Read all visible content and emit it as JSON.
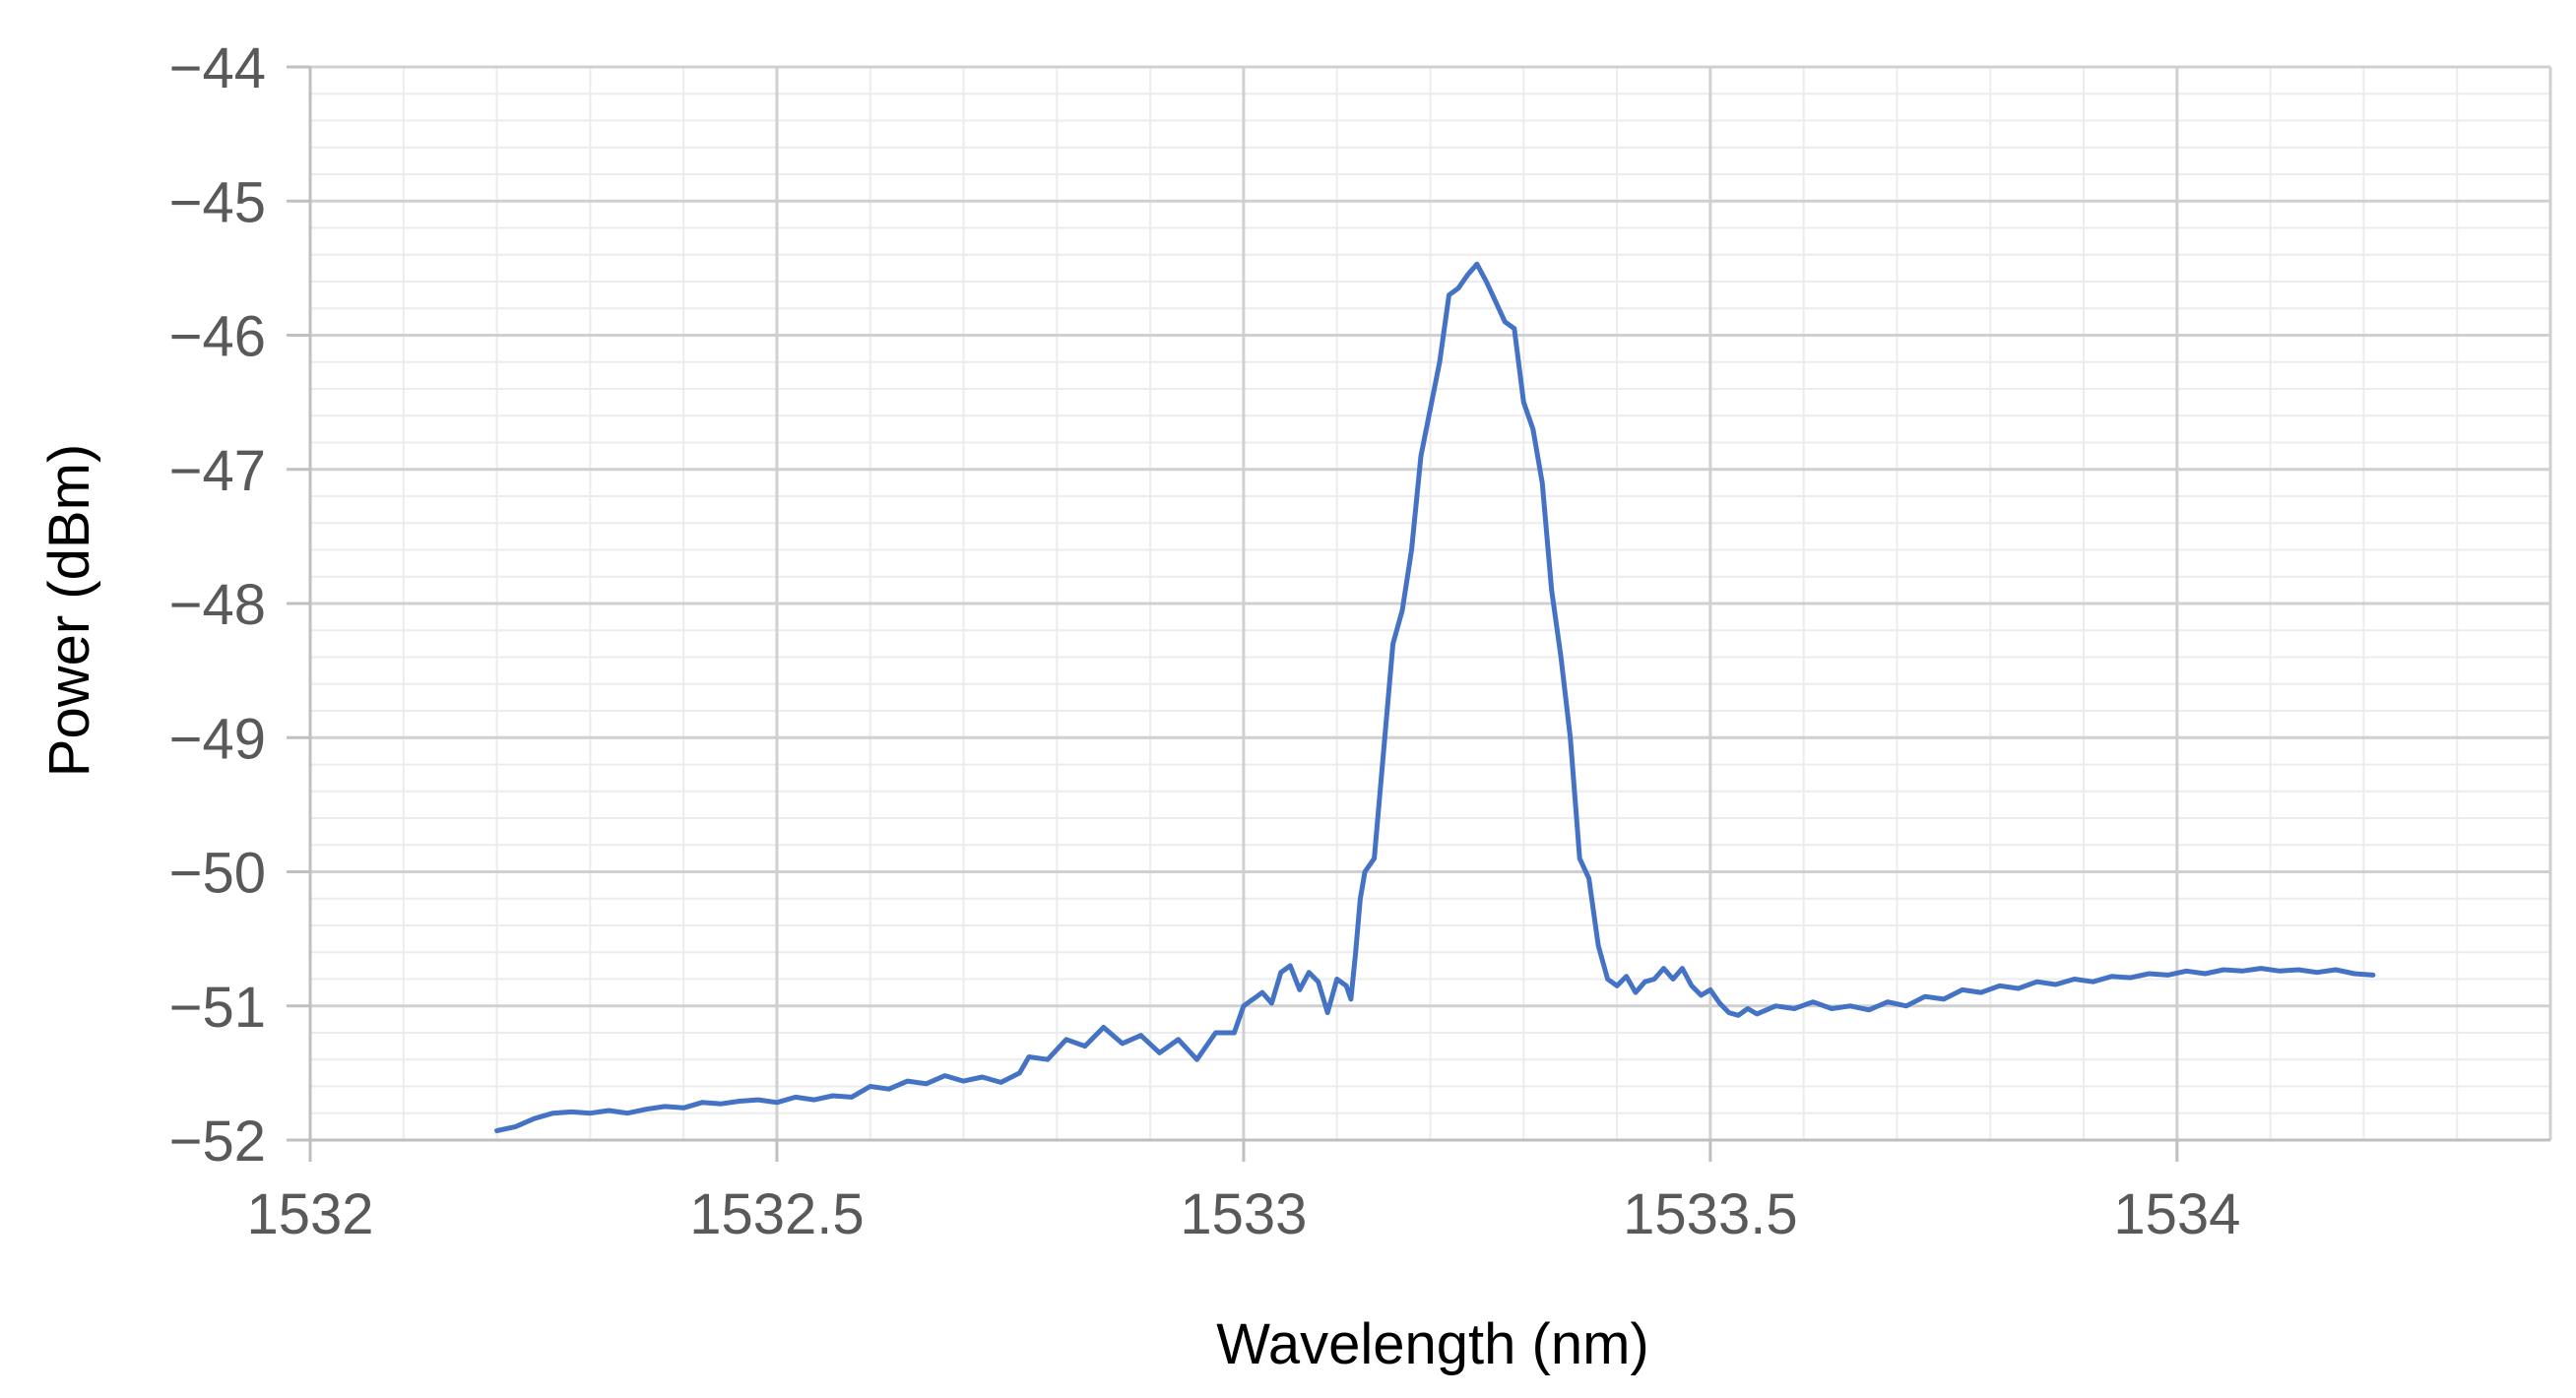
{
  "chart_data": {
    "type": "line",
    "title": "",
    "xlabel": "Wavelength (nm)",
    "ylabel": "Power (dBm)",
    "xlim": [
      1532,
      1534.4
    ],
    "ylim": [
      -52,
      -44
    ],
    "x_ticks": [
      1532,
      1532.5,
      1533,
      1533.5,
      1534
    ],
    "x_tick_labels": [
      "1532",
      "1532.5",
      "1533",
      "1533.5",
      "1534"
    ],
    "y_ticks": [
      -52,
      -51,
      -50,
      -49,
      -48,
      -47,
      -46,
      -45,
      -44
    ],
    "y_tick_labels": [
      "−52",
      "−51",
      "−50",
      "−49",
      "−48",
      "−47",
      "−46",
      "−45",
      "−44"
    ],
    "grid": {
      "major": true,
      "minor": true
    },
    "legend": "none",
    "series": [
      {
        "color": "#4472C4",
        "points": [
          [
            1532.2,
            -51.93
          ],
          [
            1532.22,
            -51.9
          ],
          [
            1532.24,
            -51.84
          ],
          [
            1532.26,
            -51.8
          ],
          [
            1532.28,
            -51.79
          ],
          [
            1532.3,
            -51.8
          ],
          [
            1532.32,
            -51.78
          ],
          [
            1532.34,
            -51.8
          ],
          [
            1532.36,
            -51.77
          ],
          [
            1532.38,
            -51.75
          ],
          [
            1532.4,
            -51.76
          ],
          [
            1532.42,
            -51.72
          ],
          [
            1532.44,
            -51.73
          ],
          [
            1532.46,
            -51.71
          ],
          [
            1532.48,
            -51.7
          ],
          [
            1532.5,
            -51.72
          ],
          [
            1532.52,
            -51.68
          ],
          [
            1532.54,
            -51.7
          ],
          [
            1532.56,
            -51.67
          ],
          [
            1532.58,
            -51.68
          ],
          [
            1532.6,
            -51.6
          ],
          [
            1532.62,
            -51.62
          ],
          [
            1532.64,
            -51.56
          ],
          [
            1532.66,
            -51.58
          ],
          [
            1532.68,
            -51.52
          ],
          [
            1532.7,
            -51.56
          ],
          [
            1532.72,
            -51.53
          ],
          [
            1532.74,
            -51.57
          ],
          [
            1532.76,
            -51.5
          ],
          [
            1532.77,
            -51.38
          ],
          [
            1532.79,
            -51.4
          ],
          [
            1532.81,
            -51.25
          ],
          [
            1532.83,
            -51.3
          ],
          [
            1532.85,
            -51.16
          ],
          [
            1532.87,
            -51.28
          ],
          [
            1532.89,
            -51.22
          ],
          [
            1532.91,
            -51.35
          ],
          [
            1532.93,
            -51.25
          ],
          [
            1532.95,
            -51.4
          ],
          [
            1532.97,
            -51.2
          ],
          [
            1532.99,
            -51.2
          ],
          [
            1533.0,
            -51.0
          ],
          [
            1533.02,
            -50.9
          ],
          [
            1533.03,
            -50.98
          ],
          [
            1533.04,
            -50.75
          ],
          [
            1533.05,
            -50.7
          ],
          [
            1533.06,
            -50.88
          ],
          [
            1533.07,
            -50.75
          ],
          [
            1533.08,
            -50.82
          ],
          [
            1533.09,
            -51.05
          ],
          [
            1533.1,
            -50.8
          ],
          [
            1533.11,
            -50.85
          ],
          [
            1533.115,
            -50.95
          ],
          [
            1533.12,
            -50.6
          ],
          [
            1533.125,
            -50.2
          ],
          [
            1533.13,
            -50.0
          ],
          [
            1533.14,
            -49.9
          ],
          [
            1533.15,
            -49.1
          ],
          [
            1533.16,
            -48.3
          ],
          [
            1533.17,
            -48.05
          ],
          [
            1533.18,
            -47.6
          ],
          [
            1533.19,
            -46.9
          ],
          [
            1533.2,
            -46.55
          ],
          [
            1533.21,
            -46.2
          ],
          [
            1533.22,
            -45.7
          ],
          [
            1533.23,
            -45.65
          ],
          [
            1533.24,
            -45.55
          ],
          [
            1533.25,
            -45.47
          ],
          [
            1533.26,
            -45.6
          ],
          [
            1533.27,
            -45.75
          ],
          [
            1533.28,
            -45.9
          ],
          [
            1533.29,
            -45.95
          ],
          [
            1533.3,
            -46.5
          ],
          [
            1533.31,
            -46.7
          ],
          [
            1533.32,
            -47.1
          ],
          [
            1533.33,
            -47.9
          ],
          [
            1533.34,
            -48.4
          ],
          [
            1533.35,
            -49.0
          ],
          [
            1533.36,
            -49.9
          ],
          [
            1533.37,
            -50.05
          ],
          [
            1533.38,
            -50.55
          ],
          [
            1533.39,
            -50.8
          ],
          [
            1533.4,
            -50.85
          ],
          [
            1533.41,
            -50.78
          ],
          [
            1533.42,
            -50.9
          ],
          [
            1533.43,
            -50.82
          ],
          [
            1533.44,
            -50.8
          ],
          [
            1533.45,
            -50.72
          ],
          [
            1533.46,
            -50.8
          ],
          [
            1533.47,
            -50.72
          ],
          [
            1533.48,
            -50.85
          ],
          [
            1533.49,
            -50.92
          ],
          [
            1533.5,
            -50.88
          ],
          [
            1533.51,
            -50.98
          ],
          [
            1533.52,
            -51.05
          ],
          [
            1533.53,
            -51.07
          ],
          [
            1533.54,
            -51.02
          ],
          [
            1533.55,
            -51.06
          ],
          [
            1533.57,
            -51.0
          ],
          [
            1533.59,
            -51.02
          ],
          [
            1533.61,
            -50.97
          ],
          [
            1533.63,
            -51.02
          ],
          [
            1533.65,
            -51.0
          ],
          [
            1533.67,
            -51.03
          ],
          [
            1533.69,
            -50.97
          ],
          [
            1533.71,
            -51.0
          ],
          [
            1533.73,
            -50.93
          ],
          [
            1533.75,
            -50.95
          ],
          [
            1533.77,
            -50.88
          ],
          [
            1533.79,
            -50.9
          ],
          [
            1533.81,
            -50.85
          ],
          [
            1533.83,
            -50.87
          ],
          [
            1533.85,
            -50.82
          ],
          [
            1533.87,
            -50.84
          ],
          [
            1533.89,
            -50.8
          ],
          [
            1533.91,
            -50.82
          ],
          [
            1533.93,
            -50.78
          ],
          [
            1533.95,
            -50.79
          ],
          [
            1533.97,
            -50.76
          ],
          [
            1533.99,
            -50.77
          ],
          [
            1534.01,
            -50.74
          ],
          [
            1534.03,
            -50.76
          ],
          [
            1534.05,
            -50.73
          ],
          [
            1534.07,
            -50.74
          ],
          [
            1534.09,
            -50.72
          ],
          [
            1534.11,
            -50.74
          ],
          [
            1534.13,
            -50.73
          ],
          [
            1534.15,
            -50.75
          ],
          [
            1534.17,
            -50.73
          ],
          [
            1534.19,
            -50.76
          ],
          [
            1534.21,
            -50.77
          ]
        ]
      }
    ]
  }
}
